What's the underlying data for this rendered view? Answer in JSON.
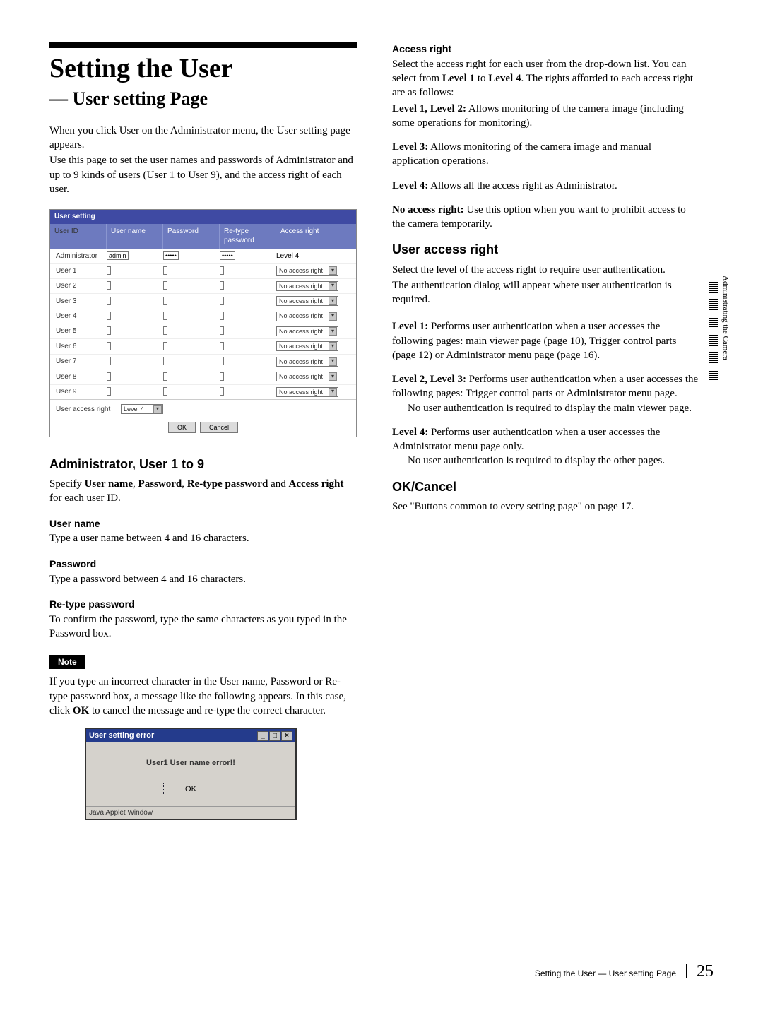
{
  "page": {
    "title": "Setting the User",
    "subtitle": "— User setting Page",
    "intro1": "When you click User on the Administrator menu, the User setting page appears.",
    "intro2": "Use this page to set the user names and passwords of Administrator and up to 9 kinds of users (User 1 to User 9), and the access right of each user.",
    "tab": "Administrating the Camera",
    "footer_text": "Setting the User — User setting Page",
    "page_number": "25"
  },
  "usettable": {
    "caption": "User setting",
    "headers": {
      "id": "User ID",
      "un": "User name",
      "pw": "Password",
      "rp": "Re-type password",
      "ar": "Access right"
    },
    "admin_row": {
      "id": "Administrator",
      "un": "admin",
      "pw": "•••••",
      "rp": "•••••",
      "ar": "Level 4"
    },
    "rows": [
      {
        "id": "User 1",
        "ar": "No access right"
      },
      {
        "id": "User 2",
        "ar": "No access right"
      },
      {
        "id": "User 3",
        "ar": "No access right"
      },
      {
        "id": "User 4",
        "ar": "No access right"
      },
      {
        "id": "User 5",
        "ar": "No access right"
      },
      {
        "id": "User 6",
        "ar": "No access right"
      },
      {
        "id": "User 7",
        "ar": "No access right"
      },
      {
        "id": "User 8",
        "ar": "No access right"
      },
      {
        "id": "User 9",
        "ar": "No access right"
      }
    ],
    "uar_label": "User access right",
    "uar_value": "Level 4",
    "ok": "OK",
    "cancel": "Cancel"
  },
  "left": {
    "h_admin": "Administrator, User 1 to 9",
    "p_admin_1": "Specify ",
    "p_admin_b1": "User name",
    "p_admin_2": ", ",
    "p_admin_b2": "Password",
    "p_admin_3": ", ",
    "p_admin_b3": "Re-type password",
    "p_admin_4": " and ",
    "p_admin_b4": "Access right",
    "p_admin_5": " for each user ID.",
    "h_un": "User name",
    "p_un": "Type a user name between 4 and 16 characters.",
    "h_pw": "Password",
    "p_pw": "Type a password between 4 and 16 characters.",
    "h_rp": "Re-type password",
    "p_rp": "To confirm the password, type the same characters as you typed in the Password box.",
    "note_label": "Note",
    "p_note_1": "If you type an incorrect character in the User name, Password or Re-type password box, a message like the following appears.  In this case, click ",
    "p_note_b": "OK",
    "p_note_2": " to cancel the message and re-type the correct character."
  },
  "dialog": {
    "title": "User setting error",
    "msg": "User1 User name error!!",
    "ok": "OK",
    "status": "Java Applet Window"
  },
  "right": {
    "h_access": "Access right",
    "p_access_1": "Select the access right for each user from the drop-down list.  You can select from ",
    "p_access_b1": "Level 1",
    "p_access_2": " to ",
    "p_access_b2": "Level 4",
    "p_access_3": ".  The rights afforded to each access right are as follows:",
    "l12_t": "Level 1, Level 2:",
    "l12_d": " Allows monitoring of the camera image (including some operations for monitoring).",
    "l3_t": "Level 3:",
    "l3_d": " Allows monitoring of the camera image and manual application operations.",
    "l4_t": "Level 4:",
    "l4_d": " Allows all the access right as Administrator.",
    "nar_t": "No access right:",
    "nar_d": " Use this option when you want to prohibit access to the camera temporarily.",
    "h_uar": "User access right",
    "p_uar_1": "Select the level of the access right to require user authentication.",
    "p_uar_2": "The authentication dialog will appear where user authentication is required.",
    "u1_t": "Level 1:",
    "u1_d": " Performs user authentication when a user accesses the following pages:  main viewer page (page 10), Trigger control parts (page 12) or Administrator menu page (page 16).",
    "u23_t": "Level 2, Level 3:",
    "u23_d1": " Performs user authentication when a user accesses the following pages:  Trigger control parts or Administrator menu page.",
    "u23_d2": "No user authentication is required to display the main viewer page.",
    "u4_t": "Level 4:",
    "u4_d1": " Performs user authentication when a user accesses the Administrator menu page only.",
    "u4_d2": "No user authentication is required to display the other pages.",
    "h_ok": "OK/Cancel",
    "p_ok": "See \"Buttons common to every setting page\" on page 17."
  }
}
